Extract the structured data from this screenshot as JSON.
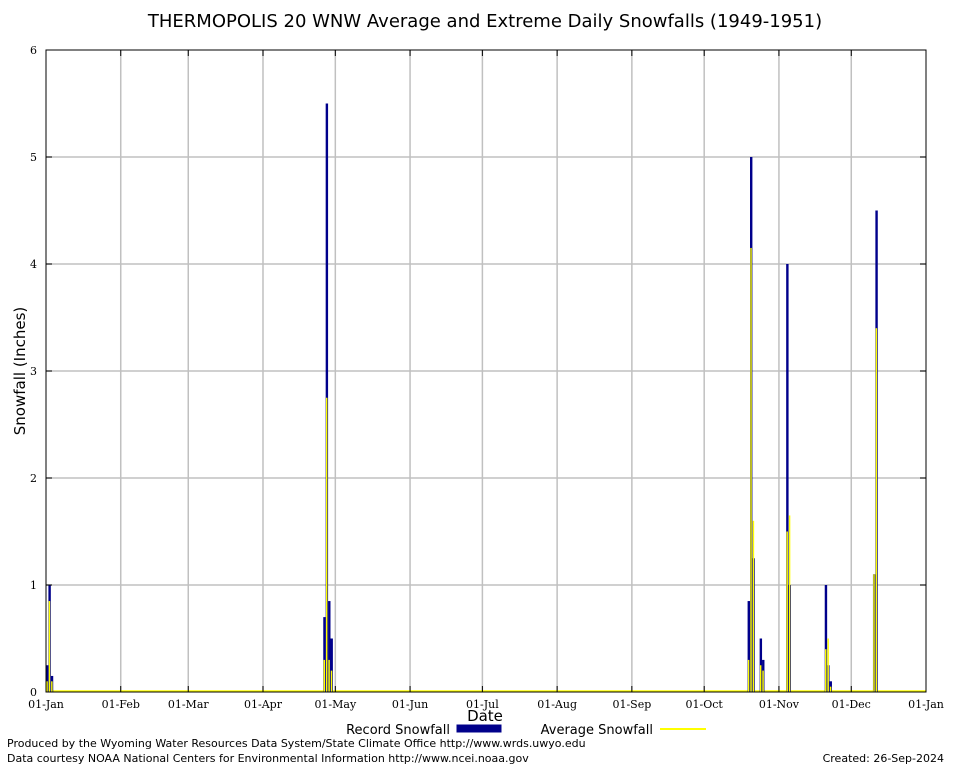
{
  "chart_data": {
    "type": "bar",
    "title": "THERMOPOLIS 20 WNW Average and Extreme Daily Snowfalls (1949-1951)",
    "xlabel": "Date",
    "ylabel": "Snowfall (Inches)",
    "ylim": [
      0,
      6
    ],
    "yticks": [
      "0",
      "1",
      "2",
      "3",
      "4",
      "5",
      "6"
    ],
    "xlim": [
      "01-Jan",
      "01-Jan"
    ],
    "xticks": [
      "01-Jan",
      "01-Feb",
      "01-Mar",
      "01-Apr",
      "01-May",
      "01-Jun",
      "01-Jul",
      "01-Aug",
      "01-Sep",
      "01-Oct",
      "01-Nov",
      "01-Dec",
      "01-Jan"
    ],
    "grid": true,
    "legend_position": "bottom",
    "series": [
      {
        "name": "Record Snowfall",
        "color": "#00008b",
        "x": [
          "01-Jan",
          "02-Jan",
          "03-Jan",
          "26-Apr",
          "27-Apr",
          "28-Apr",
          "29-Apr",
          "19-Oct",
          "20-Oct",
          "21-Oct",
          "24-Oct",
          "25-Oct",
          "04-Nov",
          "05-Nov",
          "20-Nov",
          "21-Nov",
          "22-Nov",
          "10-Dec",
          "11-Dec"
        ],
        "values": [
          0.25,
          1.0,
          0.15,
          0.7,
          5.5,
          0.85,
          0.5,
          0.85,
          5.0,
          1.25,
          0.5,
          0.3,
          4.0,
          1.0,
          1.0,
          0.25,
          0.1,
          1.1,
          4.5
        ]
      },
      {
        "name": "Average Snowfall",
        "color": "#ffff00",
        "x": [
          "01-Jan",
          "02-Jan",
          "03-Jan",
          "26-Apr",
          "27-Apr",
          "28-Apr",
          "29-Apr",
          "19-Oct",
          "20-Oct",
          "21-Oct",
          "24-Oct",
          "25-Oct",
          "04-Nov",
          "05-Nov",
          "20-Nov",
          "21-Nov",
          "22-Nov",
          "10-Dec",
          "11-Dec"
        ],
        "values": [
          0.1,
          0.85,
          0.1,
          0.3,
          2.75,
          0.3,
          0.2,
          0.3,
          4.15,
          1.6,
          0.25,
          0.2,
          1.5,
          1.65,
          0.4,
          0.5,
          0.05,
          1.1,
          3.4
        ]
      }
    ]
  },
  "footer": {
    "credit_line1": "Produced by the Wyoming Water Resources Data System/State Climate Office http://www.wrds.uwyo.edu",
    "credit_line2": "Data courtesy NOAA National Centers for Environmental Information http://www.ncei.noaa.gov",
    "created": "Created:  26-Sep-2024"
  }
}
